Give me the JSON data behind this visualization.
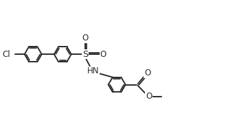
{
  "bg": "#ffffff",
  "lc": "#2a2a2a",
  "lw": 1.4,
  "dbo": 0.06,
  "r": 0.38,
  "figsize": [
    3.29,
    1.78
  ],
  "dpi": 100,
  "xlim": [
    0.0,
    9.8
  ],
  "ylim": [
    -1.8,
    3.2
  ]
}
